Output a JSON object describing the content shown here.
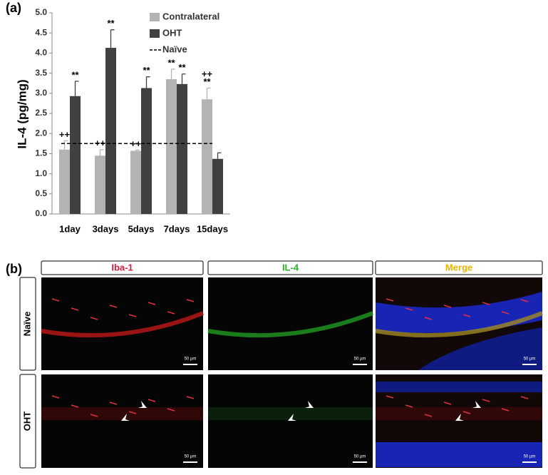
{
  "panel_a": {
    "label": "(a)"
  },
  "chart_data": {
    "type": "bar",
    "ylabel": "IL-4 (pg/mg)",
    "categories": [
      "1day",
      "3days",
      "5days",
      "7days",
      "15days"
    ],
    "series": [
      {
        "name": "Contralateral",
        "color": "#b3b3b3",
        "values": [
          1.6,
          1.45,
          1.57,
          3.35,
          2.85
        ],
        "errors": [
          0.22,
          0.15,
          0.02,
          0.25,
          0.28
        ],
        "annotations": [
          [
            "++"
          ],
          [
            "++"
          ],
          [
            "++"
          ],
          [
            "**"
          ],
          [
            "++",
            "**"
          ]
        ]
      },
      {
        "name": "OHT",
        "color": "#404040",
        "values": [
          2.93,
          4.13,
          3.13,
          3.23,
          1.37
        ],
        "errors": [
          0.37,
          0.45,
          0.28,
          0.25,
          0.15
        ],
        "annotations": [
          [
            "**"
          ],
          [
            "**"
          ],
          [
            "**"
          ],
          [
            "**"
          ],
          []
        ]
      }
    ],
    "reference_line": {
      "name": "Naïve",
      "value": 1.75,
      "style": "dashed"
    },
    "ylim": [
      0,
      5
    ],
    "yticks": [
      {
        "value": 0,
        "label": "0.0"
      },
      0.5,
      {
        "value": 1,
        "label": "1.0"
      },
      1.5,
      {
        "value": 2,
        "label": "2.0"
      },
      2.5,
      {
        "value": 3,
        "label": "3.0"
      },
      3.5,
      {
        "value": 4,
        "label": "4.0"
      },
      4.5,
      {
        "value": 5,
        "label": "5.0"
      }
    ],
    "grid": false
  },
  "panel_b": {
    "label": "(b)",
    "columns": [
      "Iba-1",
      "IL-4",
      "Merge"
    ],
    "rows": [
      "Naïve",
      "OHT"
    ],
    "scale_bar": "50 µm"
  }
}
